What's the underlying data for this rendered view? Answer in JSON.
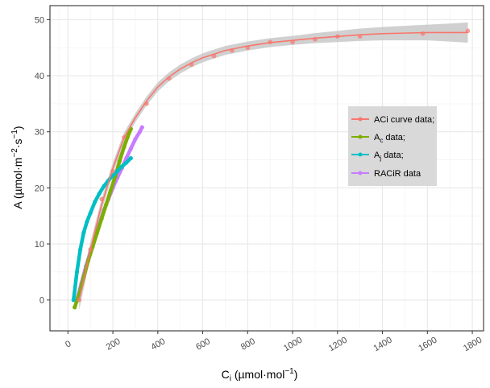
{
  "chart_data": {
    "type": "line",
    "xlabel": {
      "main": "C",
      "sub": "i",
      "unit_pre": " (µmol·mol",
      "sup": "−1",
      "unit_post": ")"
    },
    "ylabel": {
      "main": "A (µmol·m",
      "sup1": "−2",
      "mid": "·s",
      "sup2": "−1",
      "post": ")"
    },
    "xlim": [
      -80,
      1850
    ],
    "ylim": [
      -5.5,
      52.5
    ],
    "x_ticks": [
      0,
      200,
      400,
      600,
      800,
      1000,
      1200,
      1400,
      1600,
      1800
    ],
    "x_tick_labels": [
      "0",
      "200",
      "400",
      "600",
      "800",
      "1000",
      "1200",
      "1400",
      "1600",
      "1800"
    ],
    "y_ticks": [
      0,
      10,
      20,
      30,
      40,
      50
    ],
    "y_tick_labels": [
      "0",
      "10",
      "20",
      "30",
      "40",
      "50"
    ],
    "grid": true,
    "legend_position": "right",
    "legend": [
      {
        "label": "ACi curve data;",
        "sub": ""
      },
      {
        "label": "A",
        "sub": "c",
        "suffix": " data;"
      },
      {
        "label": "A",
        "sub": "j",
        "suffix": " data;"
      },
      {
        "label": "RACiR data",
        "sub": ""
      }
    ],
    "colors": {
      "aci": "#F8766D",
      "ac": "#7CAE00",
      "aj": "#00BFC4",
      "racir": "#C77CFF",
      "ribbon": "#c8c8c8"
    },
    "series": [
      {
        "name": "ACi curve data;",
        "type": "points",
        "x": [
          50,
          100,
          150,
          200,
          250,
          350,
          450,
          550,
          650,
          730,
          800,
          900,
          1000,
          1100,
          1200,
          1300,
          1580,
          1780
        ],
        "y": [
          0,
          9,
          18,
          23,
          29,
          35,
          39.5,
          42,
          43.5,
          44.5,
          45,
          46,
          46,
          46.5,
          47,
          47,
          47.5,
          48
        ]
      },
      {
        "name": "ACi curve data;",
        "type": "fit",
        "x": [
          50,
          100,
          150,
          200,
          250,
          300,
          350,
          400,
          450,
          500,
          550,
          600,
          700,
          800,
          900,
          1000,
          1100,
          1200,
          1300,
          1400,
          1500,
          1600,
          1700,
          1780
        ],
        "y": [
          0,
          9,
          17,
          23.5,
          29,
          32.5,
          35.5,
          38,
          39.8,
          41.2,
          42.3,
          43.2,
          44.5,
          45.3,
          45.9,
          46.3,
          46.7,
          47,
          47.3,
          47.5,
          47.6,
          47.7,
          47.7,
          47.7
        ],
        "band": [
          1.8,
          1.3,
          1.1,
          1,
          0.9,
          0.8,
          0.8,
          0.8,
          0.8,
          0.8,
          0.8,
          0.8,
          0.8,
          0.8,
          0.8,
          0.8,
          0.9,
          1,
          1.1,
          1.2,
          1.3,
          1.4,
          1.6,
          1.8
        ]
      },
      {
        "name": "A_c data;",
        "x": [
          30,
          50,
          70,
          90,
          110,
          130,
          150,
          170,
          190,
          210,
          230,
          250,
          265,
          280
        ],
        "y": [
          -1.3,
          1,
          4,
          7,
          9.5,
          12,
          14.5,
          17,
          19.5,
          22,
          24.8,
          27.3,
          29,
          30.5
        ]
      },
      {
        "name": "A_j data;",
        "x": [
          25,
          40,
          55,
          70,
          85,
          100,
          120,
          140,
          160,
          180,
          200,
          220,
          240,
          260,
          280
        ],
        "y": [
          0,
          5,
          9,
          12,
          14,
          15.5,
          17.5,
          19,
          20.3,
          21.3,
          22.2,
          23,
          23.8,
          24.5,
          25.3
        ]
      },
      {
        "name": "RACiR data",
        "x": [
          40,
          60,
          80,
          100,
          120,
          140,
          160,
          180,
          200,
          220,
          240,
          260,
          280,
          300,
          320,
          330
        ],
        "y": [
          0,
          3,
          6,
          8.5,
          11,
          13.5,
          16,
          18,
          20,
          21.8,
          23.5,
          25.3,
          27,
          28.7,
          30,
          30.8
        ]
      }
    ]
  }
}
